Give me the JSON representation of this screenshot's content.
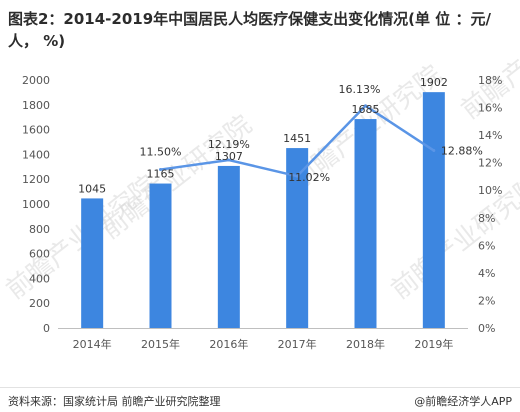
{
  "chart_data": {
    "type": "bar+line",
    "title": "图表2：2014-2019年中国居民人均医疗保健支出变化情况(单 位 ：元/人， %)",
    "categories": [
      "2014年",
      "2015年",
      "2016年",
      "2017年",
      "2018年",
      "2019年"
    ],
    "bar_series": {
      "values": [
        1045,
        1165,
        1307,
        1451,
        1685,
        1902
      ],
      "color": "#3d86e0"
    },
    "line_series": {
      "values": [
        null,
        11.5,
        12.19,
        11.02,
        16.13,
        12.88
      ],
      "color": "#5a95e6",
      "labels": [
        "",
        "11.50%",
        "12.19%",
        "11.02%",
        "16.13%",
        "12.88%"
      ]
    },
    "y_left": {
      "range": [
        0,
        2000
      ],
      "ticks": [
        "0",
        "200",
        "400",
        "600",
        "800",
        "1000",
        "1200",
        "1400",
        "1600",
        "1800",
        "2000"
      ]
    },
    "y_right": {
      "range": [
        0,
        18
      ],
      "ticks": [
        "0%",
        "2%",
        "4%",
        "6%",
        "8%",
        "10%",
        "12%",
        "14%",
        "16%",
        "18%"
      ]
    },
    "grid": false,
    "legend": "none"
  },
  "watermark": "前瞻产业研究院",
  "footer": {
    "source": "资料来源：国家统计局 前瞻产业研究院整理",
    "brand": "@前瞻经济学人APP"
  }
}
